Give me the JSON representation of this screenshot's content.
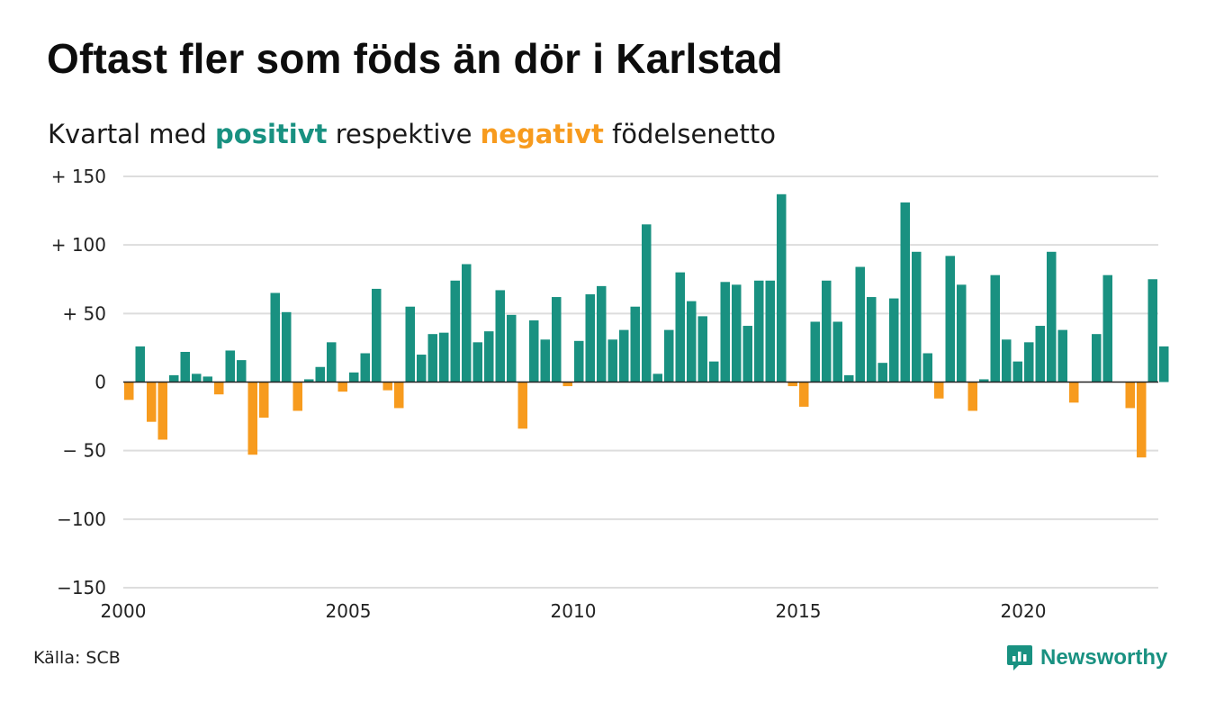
{
  "title": "Oftast fler som föds än dör i Karlstad",
  "subtitle": {
    "pre": "Kvartal med",
    "positive": "positivt",
    "mid": "respektive",
    "negative": "negativt",
    "post": "födelsenetto"
  },
  "source": "Källa: SCB",
  "brand": {
    "name": "Newsworthy",
    "icon": "newsworthy-logo-icon"
  },
  "colors": {
    "positive": "#199181",
    "negative": "#f79b1e",
    "grid": "#dddddd",
    "zero": "#222222"
  },
  "chart_data": {
    "type": "bar",
    "x_start": "2000 Q1",
    "x_ticks": [
      "2000",
      "2005",
      "2010",
      "2015",
      "2020"
    ],
    "y_ticks": [
      {
        "value": 150,
        "label": "+ 150"
      },
      {
        "value": 100,
        "label": "+ 100"
      },
      {
        "value": 50,
        "label": "+  50"
      },
      {
        "value": 0,
        "label": "0"
      },
      {
        "value": -50,
        "label": "− 50"
      },
      {
        "value": -100,
        "label": "−100"
      },
      {
        "value": -150,
        "label": "−150"
      }
    ],
    "ylim": [
      -150,
      150
    ],
    "grid": true,
    "values": [
      -13,
      26,
      -29,
      -42,
      5,
      22,
      6,
      4,
      -9,
      23,
      16,
      -53,
      -26,
      65,
      51,
      -21,
      2,
      11,
      29,
      -7,
      7,
      21,
      68,
      -6,
      -19,
      55,
      20,
      35,
      36,
      74,
      86,
      29,
      37,
      67,
      49,
      -34,
      45,
      31,
      62,
      -3,
      30,
      64,
      70,
      31,
      38,
      55,
      115,
      6,
      38,
      80,
      59,
      48,
      15,
      73,
      71,
      41,
      74,
      74,
      137,
      -3,
      -18,
      44,
      74,
      44,
      5,
      84,
      62,
      14,
      61,
      131,
      95,
      21,
      -12,
      92,
      71,
      -21,
      2,
      78,
      31,
      15,
      29,
      41,
      95,
      38,
      -15,
      0,
      35,
      78,
      0,
      -19,
      -55,
      75,
      26
    ]
  }
}
